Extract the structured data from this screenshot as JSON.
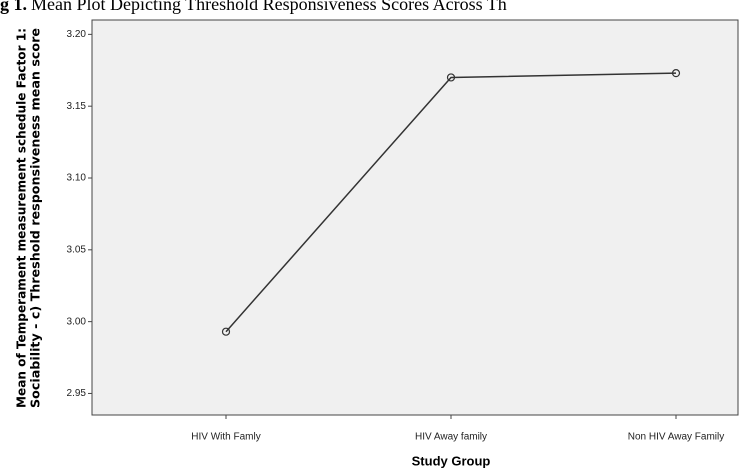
{
  "chart_data": {
    "type": "line",
    "title_label": "g 1.",
    "title": "Mean Plot Depicting Threshold Responsiveness Scores Across Th",
    "x_label": "Study Group",
    "y_label": [
      "Mean of Temperament measurement schedule Factor 1:",
      "Sociability - c)  Threshold responsiveness mean score"
    ],
    "categories": [
      "HIV With Famly",
      "HIV Away family",
      "Non HIV Away Family"
    ],
    "values": [
      2.993,
      3.17,
      3.173
    ],
    "color": "#333333",
    "ylim": [
      2.935,
      3.21
    ],
    "yticks": [
      {
        "value": 2.95,
        "label": "2.95"
      },
      {
        "value": 3.0,
        "label": "3.00"
      },
      {
        "value": 3.05,
        "label": "3.05"
      },
      {
        "value": 3.1,
        "label": "3.10"
      },
      {
        "value": 3.15,
        "label": "3.15"
      },
      {
        "value": 3.2,
        "label": "3.20"
      }
    ]
  }
}
